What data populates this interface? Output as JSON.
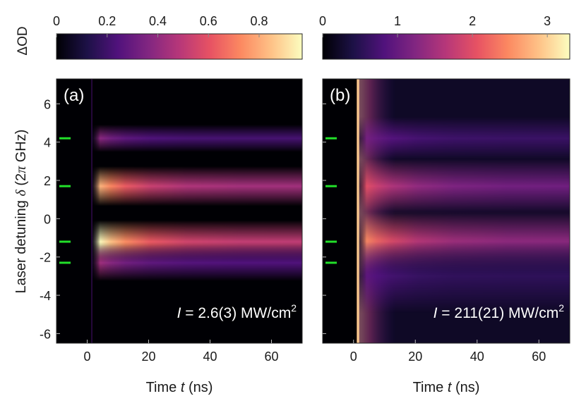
{
  "chart_data": {
    "type": "heatmap",
    "xlabel_main": "Time ",
    "xlabel_var": "t",
    "xlabel_unit": " (ns)",
    "ylabel_main": "Laser detuning ",
    "ylabel_var": "δ",
    "ylabel_unit": " (2",
    "ylabel_pi": "π",
    "ylabel_end": " GHz)",
    "colorbar_label": "ΔOD",
    "y_ticks": [
      6,
      4,
      2,
      0,
      -2,
      -4,
      -6
    ],
    "x_ticks": [
      0,
      20,
      40,
      60
    ],
    "xlim": [
      -10,
      70
    ],
    "ylim": [
      -6.5,
      7.3
    ],
    "marker_detunings": [
      4.2,
      1.7,
      -1.2,
      -2.3
    ],
    "panels": [
      {
        "label": "(a)",
        "annotation_var": "I",
        "annotation_value": " = 2.6(3) MW/cm",
        "annotation_sup": "2",
        "colorbar_ticks": [
          0,
          0.2,
          0.4,
          0.6,
          0.8
        ],
        "colorbar_range": [
          0,
          0.97
        ],
        "bands": [
          {
            "detuning": 4.2,
            "peak": 0.35,
            "width": 0.45,
            "decay_ns": 8
          },
          {
            "detuning": 1.7,
            "peak": 0.8,
            "width": 0.65,
            "decay_ns": 12
          },
          {
            "detuning": -1.2,
            "peak": 0.95,
            "width": 0.7,
            "decay_ns": 12
          },
          {
            "detuning": -2.3,
            "peak": 0.4,
            "width": 0.6,
            "decay_ns": 10
          }
        ]
      },
      {
        "label": "(b)",
        "annotation_var": "I",
        "annotation_value": " = 211(21) MW/cm",
        "annotation_sup": "2",
        "colorbar_ticks": [
          0,
          1,
          2,
          3
        ],
        "colorbar_range": [
          0,
          3.3
        ],
        "bands": [
          {
            "detuning": 4.2,
            "peak": 1.0,
            "width": 0.7,
            "decay_ns": 10
          },
          {
            "detuning": 1.7,
            "peak": 1.9,
            "width": 0.9,
            "decay_ns": 14
          },
          {
            "detuning": -1.2,
            "peak": 2.4,
            "width": 1.0,
            "decay_ns": 14
          },
          {
            "detuning": -3.0,
            "peak": 0.8,
            "width": 1.2,
            "decay_ns": 10
          }
        ]
      }
    ]
  },
  "colors": {
    "marker": "#22e02a",
    "panel_label": "#ffffff",
    "annotation": "#ffffff",
    "background": "#000004",
    "colormap": [
      "#000004",
      "#1d1147",
      "#51127c",
      "#822681",
      "#b73779",
      "#e75263",
      "#fc8961",
      "#fec287",
      "#fcfdbf"
    ]
  }
}
